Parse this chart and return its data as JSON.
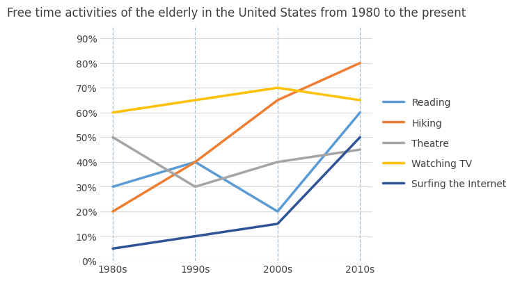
{
  "title": "Free time activities of the elderly in the United States from 1980 to the present",
  "categories": [
    "1980s",
    "1990s",
    "2000s",
    "2010s"
  ],
  "series": [
    {
      "name": "Reading",
      "values": [
        30,
        40,
        20,
        60
      ],
      "color": "#5B9BD5",
      "linewidth": 2.5
    },
    {
      "name": "Hiking",
      "values": [
        20,
        40,
        65,
        80
      ],
      "color": "#ED7D31",
      "linewidth": 2.5
    },
    {
      "name": "Theatre",
      "values": [
        50,
        30,
        40,
        45
      ],
      "color": "#A5A5A5",
      "linewidth": 2.5
    },
    {
      "name": "Watching TV",
      "values": [
        60,
        65,
        70,
        65
      ],
      "color": "#FFC000",
      "linewidth": 2.5
    },
    {
      "name": "Surfing the Internet",
      "values": [
        5,
        10,
        15,
        50
      ],
      "color": "#2F5496",
      "linewidth": 2.5
    }
  ],
  "ylim": [
    0,
    95
  ],
  "yticks": [
    0,
    10,
    20,
    30,
    40,
    50,
    60,
    70,
    80,
    90
  ],
  "vline_color": "#8EA9C1",
  "hgrid_color": "#D9D9D9",
  "title_fontsize": 12,
  "tick_fontsize": 10,
  "legend_fontsize": 10,
  "background_color": "#FFFFFF",
  "text_color": "#404040"
}
